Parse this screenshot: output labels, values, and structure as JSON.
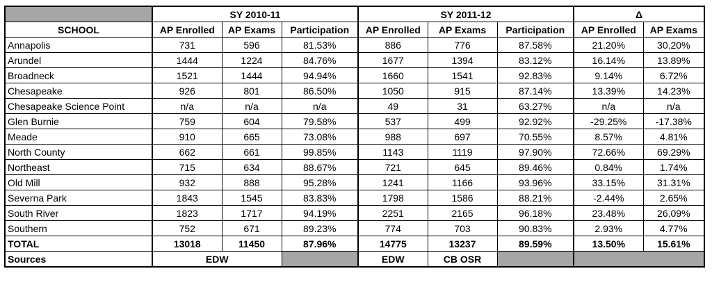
{
  "table": {
    "groups": [
      "SY 2010-11",
      "SY 2011-12",
      "Δ"
    ],
    "columns": [
      "SCHOOL",
      "AP Enrolled",
      "AP Exams",
      "Participation",
      "AP Enrolled",
      "AP Exams",
      "Participation",
      "AP Enrolled",
      "AP Exams"
    ],
    "rows": [
      [
        "Annapolis",
        "731",
        "596",
        "81.53%",
        "886",
        "776",
        "87.58%",
        "21.20%",
        "30.20%"
      ],
      [
        "Arundel",
        "1444",
        "1224",
        "84.76%",
        "1677",
        "1394",
        "83.12%",
        "16.14%",
        "13.89%"
      ],
      [
        "Broadneck",
        "1521",
        "1444",
        "94.94%",
        "1660",
        "1541",
        "92.83%",
        "9.14%",
        "6.72%"
      ],
      [
        "Chesapeake",
        "926",
        "801",
        "86.50%",
        "1050",
        "915",
        "87.14%",
        "13.39%",
        "14.23%"
      ],
      [
        "Chesapeake Science Point",
        "n/a",
        "n/a",
        "n/a",
        "49",
        "31",
        "63.27%",
        "n/a",
        "n/a"
      ],
      [
        "Glen Burnie",
        "759",
        "604",
        "79.58%",
        "537",
        "499",
        "92.92%",
        "-29.25%",
        "-17.38%"
      ],
      [
        "Meade",
        "910",
        "665",
        "73.08%",
        "988",
        "697",
        "70.55%",
        "8.57%",
        "4.81%"
      ],
      [
        "North County",
        "662",
        "661",
        "99.85%",
        "1143",
        "1119",
        "97.90%",
        "72.66%",
        "69.29%"
      ],
      [
        "Northeast",
        "715",
        "634",
        "88.67%",
        "721",
        "645",
        "89.46%",
        "0.84%",
        "1.74%"
      ],
      [
        "Old Mill",
        "932",
        "888",
        "95.28%",
        "1241",
        "1166",
        "93.96%",
        "33.15%",
        "31.31%"
      ],
      [
        "Severna Park",
        "1843",
        "1545",
        "83.83%",
        "1798",
        "1586",
        "88.21%",
        "-2.44%",
        "2.65%"
      ],
      [
        "South River",
        "1823",
        "1717",
        "94.19%",
        "2251",
        "2165",
        "96.18%",
        "23.48%",
        "26.09%"
      ],
      [
        "Southern",
        "752",
        "671",
        "89.23%",
        "774",
        "703",
        "90.83%",
        "2.93%",
        "4.77%"
      ]
    ],
    "total": [
      "TOTAL",
      "13018",
      "11450",
      "87.96%",
      "14775",
      "13237",
      "89.59%",
      "13.50%",
      "15.61%"
    ],
    "sources": {
      "label": "Sources",
      "sy1": "EDW",
      "sy2_enrolled": "EDW",
      "sy2_exams": "CB OSR"
    }
  }
}
